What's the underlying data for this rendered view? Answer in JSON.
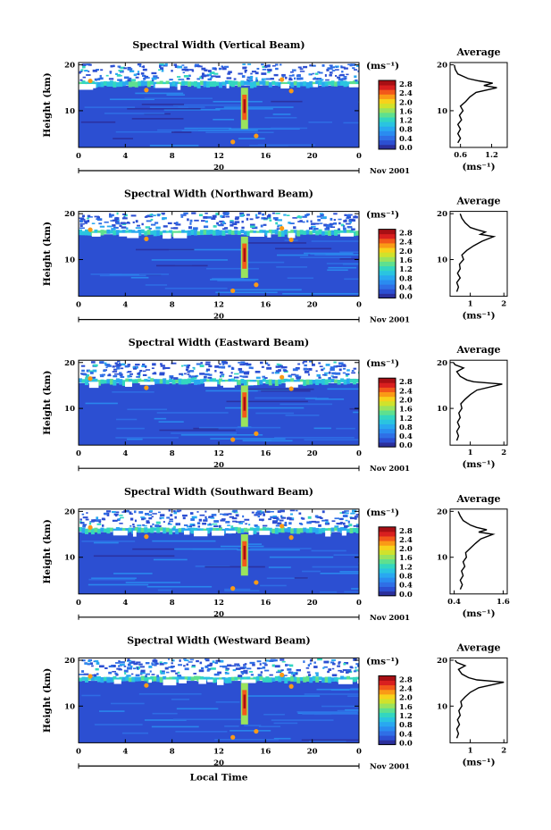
{
  "figure": {
    "xlabel": "Local Time",
    "date_label": "Nov 2001",
    "day_label": "20",
    "unit_label": "(ms⁻¹)",
    "colorbar_ticks": [
      "2.8",
      "2.4",
      "2.0",
      "1.6",
      "1.2",
      "0.8",
      "0.4",
      "0.0"
    ],
    "colorbar_colors": [
      "#2b2f9c",
      "#2c4fd2",
      "#2f6fe6",
      "#2a8cf0",
      "#29a8f0",
      "#2ac4e0",
      "#33d6c0",
      "#5ee08f",
      "#9ae35d",
      "#d0e22c",
      "#f7d21b",
      "#fa9a16",
      "#f2581a",
      "#d91f1f",
      "#a80f14"
    ]
  },
  "chart_data": [
    {
      "type": "heatmap",
      "title": "Spectral Width (Vertical Beam)",
      "ylabel": "Height (km)",
      "x_ticks": [
        "0",
        "4",
        "8",
        "12",
        "16",
        "20",
        "0"
      ],
      "xlim": [
        0,
        24
      ],
      "y_ticks": [
        "10",
        "20"
      ],
      "ylim": [
        2,
        20.5
      ],
      "avg": {
        "title": "Average",
        "xlabel": "(ms⁻¹)",
        "x_ticks": [
          "0.6",
          "1.2"
        ],
        "xlim": [
          0.4,
          1.5
        ],
        "y_ticks": [
          "10",
          "20"
        ],
        "ylim": [
          2,
          20.5
        ],
        "profile": [
          [
            0.55,
            3
          ],
          [
            0.6,
            4
          ],
          [
            0.55,
            5
          ],
          [
            0.6,
            6
          ],
          [
            0.55,
            7
          ],
          [
            0.62,
            8
          ],
          [
            0.58,
            9
          ],
          [
            0.65,
            10
          ],
          [
            0.6,
            11
          ],
          [
            0.7,
            12
          ],
          [
            0.78,
            13
          ],
          [
            0.9,
            14
          ],
          [
            1.3,
            15
          ],
          [
            1.05,
            15.5
          ],
          [
            1.22,
            16
          ],
          [
            0.95,
            16.5
          ],
          [
            0.75,
            17
          ],
          [
            0.55,
            18
          ],
          [
            0.5,
            19
          ],
          [
            0.48,
            20
          ]
        ]
      }
    },
    {
      "type": "heatmap",
      "title": "Spectral Width (Northward Beam)",
      "ylabel": "Height (km)",
      "x_ticks": [
        "0",
        "4",
        "8",
        "12",
        "16",
        "20",
        "0"
      ],
      "xlim": [
        0,
        24
      ],
      "y_ticks": [
        "10",
        "20"
      ],
      "ylim": [
        2,
        20.5
      ],
      "avg": {
        "title": "Average",
        "xlabel": "(ms⁻¹)",
        "x_ticks": [
          "1",
          "2"
        ],
        "xlim": [
          0.4,
          2.1
        ],
        "y_ticks": [
          "10",
          "20"
        ],
        "ylim": [
          2,
          20.5
        ],
        "profile": [
          [
            0.6,
            3
          ],
          [
            0.65,
            4
          ],
          [
            0.6,
            5
          ],
          [
            0.7,
            6
          ],
          [
            0.62,
            7
          ],
          [
            0.7,
            8
          ],
          [
            0.68,
            9
          ],
          [
            0.8,
            10
          ],
          [
            0.75,
            11
          ],
          [
            0.9,
            12
          ],
          [
            1.1,
            13
          ],
          [
            1.35,
            14
          ],
          [
            1.7,
            15
          ],
          [
            1.3,
            15.5
          ],
          [
            1.45,
            16
          ],
          [
            1.2,
            16.5
          ],
          [
            1.0,
            17
          ],
          [
            0.85,
            18
          ],
          [
            0.75,
            19
          ],
          [
            0.7,
            20
          ]
        ]
      }
    },
    {
      "type": "heatmap",
      "title": "Spectral Width (Eastward Beam)",
      "ylabel": "Height (km)",
      "x_ticks": [
        "0",
        "4",
        "8",
        "12",
        "16",
        "20",
        "0"
      ],
      "xlim": [
        0,
        24
      ],
      "y_ticks": [
        "10",
        "20"
      ],
      "ylim": [
        2,
        20.5
      ],
      "avg": {
        "title": "Average",
        "xlabel": "(ms⁻¹)",
        "x_ticks": [
          "1",
          "2"
        ],
        "xlim": [
          0.4,
          2.1
        ],
        "y_ticks": [
          "10",
          "20"
        ],
        "ylim": [
          2,
          20.5
        ],
        "profile": [
          [
            0.6,
            3
          ],
          [
            0.65,
            4
          ],
          [
            0.6,
            5
          ],
          [
            0.68,
            6
          ],
          [
            0.62,
            7
          ],
          [
            0.7,
            8
          ],
          [
            0.66,
            9
          ],
          [
            0.75,
            10
          ],
          [
            0.72,
            11
          ],
          [
            0.85,
            12
          ],
          [
            1.0,
            13
          ],
          [
            1.2,
            14
          ],
          [
            1.95,
            15.3
          ],
          [
            1.1,
            15.8
          ],
          [
            0.9,
            16.2
          ],
          [
            0.7,
            17
          ],
          [
            0.6,
            18
          ],
          [
            0.8,
            18.8
          ],
          [
            0.55,
            19.5
          ],
          [
            0.5,
            20
          ]
        ]
      }
    },
    {
      "type": "heatmap",
      "title": "Spectral Width (Southward Beam)",
      "ylabel": "Height (km)",
      "x_ticks": [
        "0",
        "4",
        "8",
        "12",
        "16",
        "20",
        "0"
      ],
      "xlim": [
        0,
        24
      ],
      "y_ticks": [
        "10",
        "20"
      ],
      "ylim": [
        2,
        20.5
      ],
      "avg": {
        "title": "Average",
        "xlabel": "(ms⁻¹)",
        "x_ticks": [
          "0.4",
          "1.6"
        ],
        "xlim": [
          0.3,
          1.7
        ],
        "y_ticks": [
          "10",
          "20"
        ],
        "ylim": [
          2,
          20.5
        ],
        "profile": [
          [
            0.55,
            3
          ],
          [
            0.6,
            4
          ],
          [
            0.55,
            5
          ],
          [
            0.62,
            6
          ],
          [
            0.58,
            7
          ],
          [
            0.66,
            8
          ],
          [
            0.62,
            9
          ],
          [
            0.7,
            10
          ],
          [
            0.68,
            11
          ],
          [
            0.8,
            12
          ],
          [
            0.92,
            13
          ],
          [
            1.05,
            14
          ],
          [
            1.35,
            15
          ],
          [
            1.0,
            15.5
          ],
          [
            1.2,
            16
          ],
          [
            0.95,
            16.5
          ],
          [
            0.8,
            17
          ],
          [
            0.62,
            18
          ],
          [
            0.55,
            19
          ],
          [
            0.5,
            20
          ]
        ]
      }
    },
    {
      "type": "heatmap",
      "title": "Spectral Width (Westward Beam)",
      "ylabel": "Height (km)",
      "x_ticks": [
        "0",
        "4",
        "8",
        "12",
        "16",
        "20",
        "0"
      ],
      "xlim": [
        0,
        24
      ],
      "y_ticks": [
        "10",
        "20"
      ],
      "ylim": [
        2,
        20.5
      ],
      "avg": {
        "title": "Average",
        "xlabel": "(ms⁻¹)",
        "x_ticks": [
          "1",
          "2"
        ],
        "xlim": [
          0.4,
          2.1
        ],
        "y_ticks": [
          "10",
          "20"
        ],
        "ylim": [
          2,
          20.5
        ],
        "profile": [
          [
            0.6,
            3
          ],
          [
            0.65,
            4
          ],
          [
            0.6,
            5
          ],
          [
            0.68,
            6
          ],
          [
            0.62,
            7
          ],
          [
            0.7,
            8
          ],
          [
            0.66,
            9
          ],
          [
            0.75,
            10
          ],
          [
            0.72,
            11
          ],
          [
            0.85,
            12
          ],
          [
            1.0,
            13
          ],
          [
            1.25,
            14
          ],
          [
            2.0,
            15.2
          ],
          [
            1.2,
            15.7
          ],
          [
            0.95,
            16.2
          ],
          [
            0.75,
            17
          ],
          [
            0.65,
            18
          ],
          [
            0.85,
            18.8
          ],
          [
            0.6,
            19.5
          ],
          [
            0.55,
            20
          ]
        ]
      }
    }
  ]
}
